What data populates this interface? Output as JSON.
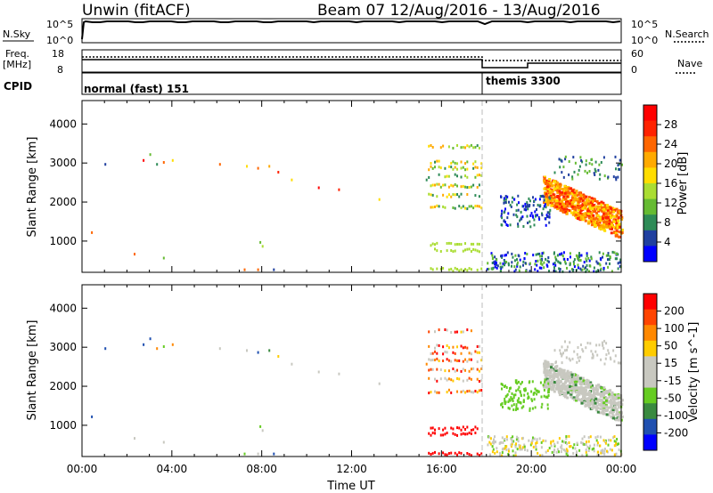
{
  "header": {
    "title": "Unwin (fitACF)",
    "beam_info": "Beam 07  12/Aug/2016 - 13/Aug/2016"
  },
  "aux_panels": {
    "nsky_label": "N.Sky",
    "nsky_ticks": [
      "10^5",
      "10^0"
    ],
    "nsearch_label": "N.Search",
    "freq_label_1": "Freq.",
    "freq_label_2": "[MHz]",
    "freq_ticks": [
      "18",
      "8"
    ],
    "nave_label": "Nave",
    "nave_ticks": [
      "60",
      "0"
    ],
    "cpid_label": "CPID",
    "cpid_modes": [
      {
        "name": "normal (fast) 151",
        "start_hour": 0
      },
      {
        "name": "themis 3300",
        "start_hour": 18
      }
    ]
  },
  "colors": {
    "power_scale": [
      "#0000ff",
      "#2040a0",
      "#2e8b57",
      "#66bb33",
      "#aadd33",
      "#ffdd00",
      "#ffaa00",
      "#ff6600",
      "#ff2200",
      "#ff0000"
    ],
    "velocity_scale": [
      "#0000ff",
      "#2050b0",
      "#3a8a40",
      "#66cc22",
      "#c8c8c0",
      "#c8c8c0",
      "#ffcc00",
      "#ff8800",
      "#ff4400",
      "#ff0000"
    ]
  },
  "chart_data": [
    {
      "type": "heatmap",
      "title": "Power",
      "ylabel": "Slant Range [km]",
      "xlabel": "",
      "colorbar_label": "Power [dB]",
      "colorbar_ticks": [
        "28",
        "24",
        "20",
        "16",
        "12",
        "8",
        "4"
      ],
      "colorbar_range": [
        0,
        32
      ],
      "xlim_hours": [
        0,
        24
      ],
      "ylim": [
        200,
        4600
      ],
      "x_ticks": [
        "00:00",
        "04:00",
        "08:00",
        "12:00",
        "16:00",
        "20:00",
        "00:00"
      ],
      "y_ticks": [
        "1000",
        "2000",
        "3000",
        "4000"
      ],
      "x_tick_hours": [
        0,
        4,
        8,
        12,
        16,
        20,
        24
      ],
      "y_tick_values": [
        1000,
        2000,
        3000,
        4000
      ]
    },
    {
      "type": "heatmap",
      "title": "Velocity",
      "ylabel": "Slant Range [km]",
      "xlabel": "Time UT",
      "colorbar_label": "Velocity [m s^-1]",
      "colorbar_ticks": [
        "200",
        "100",
        "50",
        "15",
        "-15",
        "-50",
        "-100",
        "-200"
      ],
      "xlim_hours": [
        0,
        24
      ],
      "ylim": [
        200,
        4600
      ],
      "x_ticks": [
        "00:00",
        "04:00",
        "08:00",
        "12:00",
        "16:00",
        "20:00",
        "00:00"
      ],
      "y_ticks": [
        "1000",
        "2000",
        "3000",
        "4000"
      ],
      "x_tick_hours": [
        0,
        4,
        8,
        12,
        16,
        20,
        24
      ],
      "y_tick_values": [
        1000,
        2000,
        3000,
        4000
      ]
    }
  ]
}
